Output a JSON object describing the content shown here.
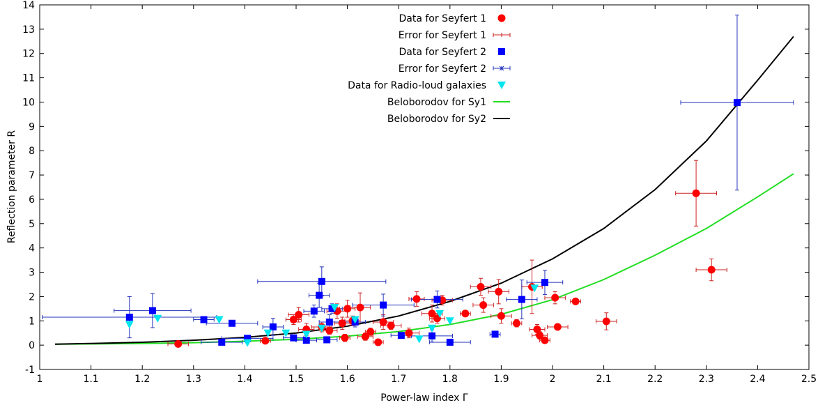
{
  "chart_data": {
    "type": "scatter",
    "xlabel": "Power-law index Γ",
    "ylabel": "Reflection parameter R",
    "xlim": [
      1,
      2.5
    ],
    "ylim": [
      -1,
      14
    ],
    "x_ticks": [
      "1",
      "1.1",
      "1.2",
      "1.3",
      "1.4",
      "1.5",
      "1.6",
      "1.7",
      "1.8",
      "1.9",
      "2",
      "2.1",
      "2.2",
      "2.3",
      "2.4",
      "2.5"
    ],
    "y_ticks": [
      "-1",
      "0",
      "1",
      "2",
      "3",
      "4",
      "5",
      "6",
      "7",
      "8",
      "9",
      "10",
      "11",
      "12",
      "13",
      "14"
    ],
    "grid": false,
    "legend_position": "top-center",
    "legend": [
      {
        "label": "Data for Seyfert 1",
        "kind": "circle",
        "color": "#ff0000"
      },
      {
        "label": "Error for Seyfert 1",
        "kind": "errorbar",
        "color": "#cc2222"
      },
      {
        "label": "Data for Seyfert 2",
        "kind": "square",
        "color": "#0000ff"
      },
      {
        "label": "Error for Seyfert 2",
        "kind": "errorbar-star",
        "color": "#2233bb"
      },
      {
        "label": "Data for Radio-loud galaxies",
        "kind": "triangle",
        "color": "#00e5ee"
      },
      {
        "label": "Beloborodov for Sy1",
        "kind": "line",
        "color": "#22dd22"
      },
      {
        "label": "Beloborodov for Sy2",
        "kind": "line",
        "color": "#000000"
      }
    ],
    "curves": [
      {
        "name": "Beloborodov for Sy1",
        "color": "#22dd22",
        "x": [
          1.03,
          1.1,
          1.2,
          1.3,
          1.4,
          1.5,
          1.6,
          1.7,
          1.8,
          1.9,
          2.0,
          2.1,
          2.2,
          2.3,
          2.4,
          2.47
        ],
        "y": [
          0.04,
          0.05,
          0.07,
          0.1,
          0.16,
          0.24,
          0.37,
          0.56,
          0.85,
          1.27,
          1.87,
          2.7,
          3.7,
          4.8,
          6.1,
          7.05
        ]
      },
      {
        "name": "Beloborodov for Sy2",
        "color": "#000000",
        "x": [
          1.03,
          1.1,
          1.2,
          1.3,
          1.4,
          1.5,
          1.6,
          1.7,
          1.8,
          1.9,
          2.0,
          2.1,
          2.2,
          2.3,
          2.4,
          2.47
        ],
        "y": [
          0.04,
          0.07,
          0.12,
          0.2,
          0.32,
          0.5,
          0.78,
          1.2,
          1.8,
          2.55,
          3.55,
          4.8,
          6.4,
          8.4,
          10.9,
          12.7
        ]
      }
    ],
    "seyfert1": [
      {
        "x": 1.27,
        "y": 0.05,
        "xerr": 0.02,
        "yerr": 0.05
      },
      {
        "x": 1.44,
        "y": 0.18,
        "xerr": 0.01,
        "yerr": 0.1
      },
      {
        "x": 1.495,
        "y": 1.05,
        "xerr": 0.015,
        "yerr": 0.2
      },
      {
        "x": 1.505,
        "y": 1.25,
        "xerr": 0.02,
        "yerr": 0.3
      },
      {
        "x": 1.52,
        "y": 0.65,
        "xerr": 0.015,
        "yerr": 0.25
      },
      {
        "x": 1.55,
        "y": 0.75,
        "xerr": 0.02,
        "yerr": 0.2
      },
      {
        "x": 1.565,
        "y": 0.6,
        "xerr": 0.015,
        "yerr": 0.15
      },
      {
        "x": 1.58,
        "y": 1.4,
        "xerr": 0.02,
        "yerr": 0.3
      },
      {
        "x": 1.59,
        "y": 0.9,
        "xerr": 0.015,
        "yerr": 0.25
      },
      {
        "x": 1.595,
        "y": 0.3,
        "xerr": 0.01,
        "yerr": 0.15
      },
      {
        "x": 1.6,
        "y": 1.5,
        "xerr": 0.015,
        "yerr": 0.35
      },
      {
        "x": 1.61,
        "y": 1.0,
        "xerr": 0.015,
        "yerr": 0.2
      },
      {
        "x": 1.625,
        "y": 1.55,
        "xerr": 0.02,
        "yerr": 0.6
      },
      {
        "x": 1.635,
        "y": 0.35,
        "xerr": 0.015,
        "yerr": 0.15
      },
      {
        "x": 1.645,
        "y": 0.55,
        "xerr": 0.01,
        "yerr": 0.15
      },
      {
        "x": 1.66,
        "y": 0.12,
        "xerr": 0.01,
        "yerr": 0.08
      },
      {
        "x": 1.67,
        "y": 0.95,
        "xerr": 0.02,
        "yerr": 0.3
      },
      {
        "x": 1.685,
        "y": 0.8,
        "xerr": 0.02,
        "yerr": 0.15
      },
      {
        "x": 1.72,
        "y": 0.5,
        "xerr": 0.02,
        "yerr": 0.2
      },
      {
        "x": 1.735,
        "y": 1.9,
        "xerr": 0.015,
        "yerr": 0.3
      },
      {
        "x": 1.765,
        "y": 1.3,
        "xerr": 0.02,
        "yerr": 0.35
      },
      {
        "x": 1.775,
        "y": 1.1,
        "xerr": 0.015,
        "yerr": 0.2
      },
      {
        "x": 1.785,
        "y": 1.85,
        "xerr": 0.02,
        "yerr": 0.2
      },
      {
        "x": 1.83,
        "y": 1.3,
        "xerr": 0.01,
        "yerr": 0.1
      },
      {
        "x": 1.86,
        "y": 2.4,
        "xerr": 0.02,
        "yerr": 0.35
      },
      {
        "x": 1.865,
        "y": 1.65,
        "xerr": 0.02,
        "yerr": 0.3
      },
      {
        "x": 1.895,
        "y": 2.2,
        "xerr": 0.02,
        "yerr": 0.5
      },
      {
        "x": 1.9,
        "y": 1.2,
        "xerr": 0.02,
        "yerr": 0.3
      },
      {
        "x": 1.93,
        "y": 0.9,
        "xerr": 0.01,
        "yerr": 0.15
      },
      {
        "x": 1.96,
        "y": 2.4,
        "xerr": 0.02,
        "yerr": 1.1
      },
      {
        "x": 1.97,
        "y": 0.65,
        "xerr": 0.015,
        "yerr": 0.2
      },
      {
        "x": 1.975,
        "y": 0.4,
        "xerr": 0.015,
        "yerr": 0.15
      },
      {
        "x": 1.985,
        "y": 0.2,
        "xerr": 0.01,
        "yerr": 0.1
      },
      {
        "x": 2.005,
        "y": 1.95,
        "xerr": 0.02,
        "yerr": 0.25
      },
      {
        "x": 2.01,
        "y": 0.75,
        "xerr": 0.02,
        "yerr": 0.1
      },
      {
        "x": 2.045,
        "y": 1.8,
        "xerr": 0.01,
        "yerr": 0.1
      },
      {
        "x": 2.105,
        "y": 0.98,
        "xerr": 0.02,
        "yerr": 0.35
      },
      {
        "x": 2.28,
        "y": 6.25,
        "xerr": 0.04,
        "yerr": 1.35
      },
      {
        "x": 2.31,
        "y": 3.1,
        "xerr": 0.03,
        "yerr": 0.45
      }
    ],
    "seyfert2": [
      {
        "x": 1.175,
        "y": 1.15,
        "xerr": 0.17,
        "yerr": 0.85
      },
      {
        "x": 1.22,
        "y": 1.42,
        "xerr": 0.075,
        "yerr": 0.7
      },
      {
        "x": 1.32,
        "y": 1.05,
        "xerr": 0.02,
        "yerr": 0.05
      },
      {
        "x": 1.355,
        "y": 0.12,
        "xerr": 0.04,
        "yerr": 0.05
      },
      {
        "x": 1.375,
        "y": 0.9,
        "xerr": 0.05,
        "yerr": 0.05
      },
      {
        "x": 1.405,
        "y": 0.28,
        "xerr": 0.05,
        "yerr": 0.1
      },
      {
        "x": 1.455,
        "y": 0.75,
        "xerr": 0.02,
        "yerr": 0.35
      },
      {
        "x": 1.495,
        "y": 0.3,
        "xerr": 0.02,
        "yerr": 0.1
      },
      {
        "x": 1.52,
        "y": 0.2,
        "xerr": 0.02,
        "yerr": 0.1
      },
      {
        "x": 1.535,
        "y": 1.4,
        "xerr": 0.02,
        "yerr": 0.25
      },
      {
        "x": 1.545,
        "y": 2.05,
        "xerr": 0.02,
        "yerr": 0.5
      },
      {
        "x": 1.55,
        "y": 2.62,
        "xerr": 0.125,
        "yerr": 0.6
      },
      {
        "x": 1.56,
        "y": 0.22,
        "xerr": 0.02,
        "yerr": 0.1
      },
      {
        "x": 1.565,
        "y": 0.95,
        "xerr": 0.02,
        "yerr": 0.3
      },
      {
        "x": 1.57,
        "y": 1.5,
        "xerr": 0.02,
        "yerr": 0.2
      },
      {
        "x": 1.615,
        "y": 0.95,
        "xerr": 0.02,
        "yerr": 0.2
      },
      {
        "x": 1.67,
        "y": 1.65,
        "xerr": 0.06,
        "yerr": 0.45
      },
      {
        "x": 1.705,
        "y": 0.4,
        "xerr": 0.02,
        "yerr": 0.1
      },
      {
        "x": 1.765,
        "y": 0.38,
        "xerr": 0.04,
        "yerr": 0.25
      },
      {
        "x": 1.775,
        "y": 1.88,
        "xerr": 0.05,
        "yerr": 0.35
      },
      {
        "x": 1.8,
        "y": 0.12,
        "xerr": 0.04,
        "yerr": 0.05
      },
      {
        "x": 1.888,
        "y": 0.45,
        "xerr": 0.01,
        "yerr": 0.05
      },
      {
        "x": 1.94,
        "y": 1.88,
        "xerr": 0.03,
        "yerr": 0.8
      },
      {
        "x": 1.985,
        "y": 2.58,
        "xerr": 0.035,
        "yerr": 0.5
      },
      {
        "x": 2.36,
        "y": 9.98,
        "xerr": 0.11,
        "yerr": 3.6
      }
    ],
    "radio_loud": [
      {
        "x": 1.175,
        "y": 0.85
      },
      {
        "x": 1.23,
        "y": 1.1
      },
      {
        "x": 1.35,
        "y": 1.05
      },
      {
        "x": 1.405,
        "y": 0.1
      },
      {
        "x": 1.445,
        "y": 0.5
      },
      {
        "x": 1.48,
        "y": 0.5
      },
      {
        "x": 1.52,
        "y": 0.45
      },
      {
        "x": 1.55,
        "y": 0.7
      },
      {
        "x": 1.575,
        "y": 1.55
      },
      {
        "x": 1.615,
        "y": 1.05
      },
      {
        "x": 1.74,
        "y": 0.25
      },
      {
        "x": 1.765,
        "y": 0.7
      },
      {
        "x": 1.78,
        "y": 1.3
      },
      {
        "x": 1.8,
        "y": 1.0
      },
      {
        "x": 1.965,
        "y": 2.35
      }
    ]
  }
}
